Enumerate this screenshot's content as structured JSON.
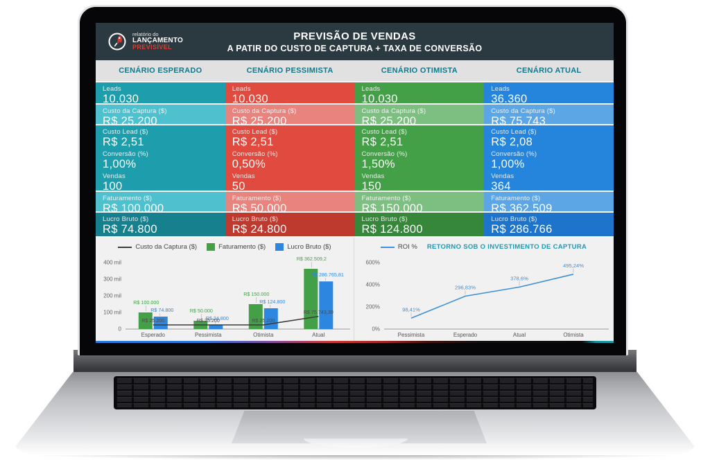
{
  "branding": {
    "line1": "relatório do",
    "line2": "LANÇAMENTO",
    "line3": "PREVISÍVEL",
    "rocket_color": "#d9362f"
  },
  "header": {
    "title": "PREVISÃO DE VENDAS",
    "subtitle": "A PATIR DO CUSTO DE CAPTURA + TAXA DE CONVERSÃO",
    "background": "#2b3941"
  },
  "scenario_header_color": "#10798c",
  "scenarios": [
    {
      "name": "CENÁRIO ESPERADO",
      "colors": {
        "base": "#1e9ead",
        "light": "#4ec0ce",
        "dark": "#17808f"
      },
      "rows": [
        {
          "label": "Leads",
          "value": "10.030"
        },
        {
          "label": "Custo da Captura ($)",
          "value": "R$ 25.200"
        },
        {
          "label": "Custo Lead ($)",
          "value": "R$ 2,51"
        },
        {
          "label": "Conversão (%)",
          "value": "1,00%"
        },
        {
          "label": "Vendas",
          "value": "100"
        },
        {
          "label": "Faturamento ($)",
          "value": "R$ 100.000"
        },
        {
          "label": "Lucro Bruto ($)",
          "value": "R$ 74.800"
        }
      ]
    },
    {
      "name": "CENÁRIO PESSIMISTA",
      "colors": {
        "base": "#e14b3f",
        "light": "#e9837d",
        "dark": "#be392e"
      },
      "rows": [
        {
          "label": "Leads",
          "value": "10.030"
        },
        {
          "label": "Custo da Captura ($)",
          "value": "R$ 25.200"
        },
        {
          "label": "Custo Lead ($)",
          "value": "R$ 2,51"
        },
        {
          "label": "Conversão (%)",
          "value": "0,50%"
        },
        {
          "label": "Vendas",
          "value": "50"
        },
        {
          "label": "Faturamento ($)",
          "value": "R$ 50.000"
        },
        {
          "label": "Lucro Bruto ($)",
          "value": "R$ 24.800"
        }
      ]
    },
    {
      "name": "CENÁRIO OTIMISTA",
      "colors": {
        "base": "#43a047",
        "light": "#7dbf81",
        "dark": "#37873b"
      },
      "rows": [
        {
          "label": "Leads",
          "value": "10.030"
        },
        {
          "label": "Custo da Captura ($)",
          "value": "R$ 25.200"
        },
        {
          "label": "Custo Lead ($)",
          "value": "R$ 2,51"
        },
        {
          "label": "Conversão (%)",
          "value": "1,50%"
        },
        {
          "label": "Vendas",
          "value": "150"
        },
        {
          "label": "Faturamento ($)",
          "value": "R$ 150.000"
        },
        {
          "label": "Lucro Bruto ($)",
          "value": "R$ 124.800"
        }
      ]
    },
    {
      "name": "CENÁRIO ATUAL",
      "colors": {
        "base": "#2584dc",
        "light": "#5ca6e6",
        "dark": "#1e74cb"
      },
      "rows": [
        {
          "label": "Leads",
          "value": "36.360"
        },
        {
          "label": "Custo da Captura ($)",
          "value": "R$ 75.743"
        },
        {
          "label": "Custo Lead ($)",
          "value": "R$ 2,08"
        },
        {
          "label": "Conversão (%)",
          "value": "1,00%"
        },
        {
          "label": "Vendas",
          "value": "364"
        },
        {
          "label": "Faturamento ($)",
          "value": "R$ 362.509"
        },
        {
          "label": "Lucro Bruto ($)",
          "value": "R$ 286.766"
        }
      ]
    }
  ],
  "chart_data": [
    {
      "type": "bar",
      "categories": [
        "Esperado",
        "Pessimista",
        "Otimista",
        "Atual"
      ],
      "series": [
        {
          "name": "Custo da Captura ($)",
          "type": "line",
          "color": "#3a3a3a",
          "values": [
            25200,
            25200,
            25200,
            75743.39
          ],
          "labels": [
            "R$ 25.200",
            "R$ 25.200",
            "R$ 25.200",
            "R$ 75.743,39"
          ]
        },
        {
          "name": "Faturamento ($)",
          "type": "bar",
          "color": "#43a047",
          "values": [
            100000,
            50000,
            150000,
            362509.2
          ],
          "labels": [
            "R$ 100.000",
            "R$ 50.000",
            "R$ 150.000",
            "R$ 362.509,2"
          ]
        },
        {
          "name": "Lucro Bruto ($)",
          "type": "bar",
          "color": "#2d87e0",
          "values": [
            74800,
            24800,
            124800,
            286765.81
          ],
          "labels": [
            "R$ 74.800",
            "R$ 24.800",
            "R$ 124.800",
            "R$ 286.765,81"
          ]
        }
      ],
      "ylim": [
        0,
        400000
      ],
      "yticks": [
        "0",
        "100 mil",
        "200 mil",
        "300 mil",
        "400 mil"
      ],
      "legend_position": "top",
      "grid": false
    },
    {
      "type": "line",
      "title": "RETORNO SOB O INVESTIMENTO DE CAPTURA",
      "categories": [
        "Pessimista",
        "Esperado",
        "Atual",
        "Otimista"
      ],
      "series": [
        {
          "name": "ROI %",
          "type": "line",
          "color": "#3d8fd6",
          "values": [
            98.41,
            296.83,
            378.6,
            495.24
          ],
          "labels": [
            "98,41%",
            "296,83%",
            "378,6%",
            "495,24%"
          ]
        }
      ],
      "ylim": [
        0,
        600
      ],
      "yticks": [
        "0%",
        "200%",
        "400%",
        "600%"
      ],
      "legend_position": "top",
      "grid": false
    }
  ],
  "footer_bar_colors": [
    "#2b7de0",
    "#8a4fa0",
    "#d23b33",
    "#121212",
    "#1ca3b0"
  ]
}
